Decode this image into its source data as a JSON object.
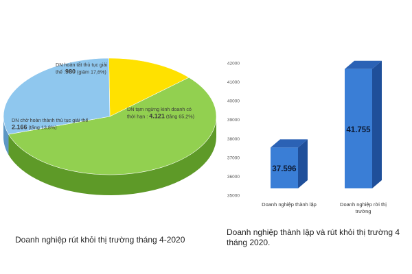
{
  "chart_data": [
    {
      "type": "pie",
      "slices": [
        {
          "id": "tam-ngung",
          "label_line1": "DN tạm ngừng kinh doanh có",
          "label_line2": "thời hạn :",
          "value_text": "4.121",
          "change_text": "(tăng 65,2%)",
          "value": 4121,
          "color": "#92d050",
          "side_color": "#5e9a28"
        },
        {
          "id": "cho-giai-the",
          "label_line1": "DN chờ hoàn thành thủ tục giải thể",
          "value_text": "2.166",
          "change_text": "(tăng 13,8%)",
          "value": 2166,
          "color": "#8fc7ee",
          "side_color": "#5d97c4"
        },
        {
          "id": "hoan-tat",
          "label_line1": "DN hoàn tất thủ tục giải",
          "label_line2": "thể :",
          "value_text": "980",
          "change_text": "(giảm 17,6%)",
          "value": 980,
          "color": "#ffe100",
          "side_color": "#c9a800"
        }
      ],
      "caption": "Doanh nghiệp rút khỏi thị trường tháng 4-2020"
    },
    {
      "type": "bar",
      "categories": [
        "Doanh nghiệp thành lập",
        "Doanh nghiệp rời thị trường"
      ],
      "category_lines": [
        [
          "Doanh nghiệp thành lập"
        ],
        [
          "Doanh nghiệp rời thị",
          "trường"
        ]
      ],
      "values": [
        37596,
        41755
      ],
      "value_labels": [
        "37.596",
        "41.755"
      ],
      "yticks": [
        {
          "value": 35000,
          "label": "35000"
        },
        {
          "value": 36000,
          "label": "36000"
        },
        {
          "value": 37000,
          "label": "37000"
        },
        {
          "value": 38000,
          "label": "38000"
        },
        {
          "value": 39000,
          "label": "39000"
        },
        {
          "value": 40000,
          "label": "40000"
        },
        {
          "value": 41000,
          "label": "41000"
        },
        {
          "value": 42000,
          "label": "42000"
        }
      ],
      "ylim": [
        35000,
        42000
      ],
      "bar_color": "#3a7ed6",
      "bar_side_color": "#1f4f9a",
      "bar_top_color": "#2b62b5",
      "caption": "Doanh nghiệp thành lập và rút khỏi thị trường 4 tháng 2020."
    }
  ]
}
